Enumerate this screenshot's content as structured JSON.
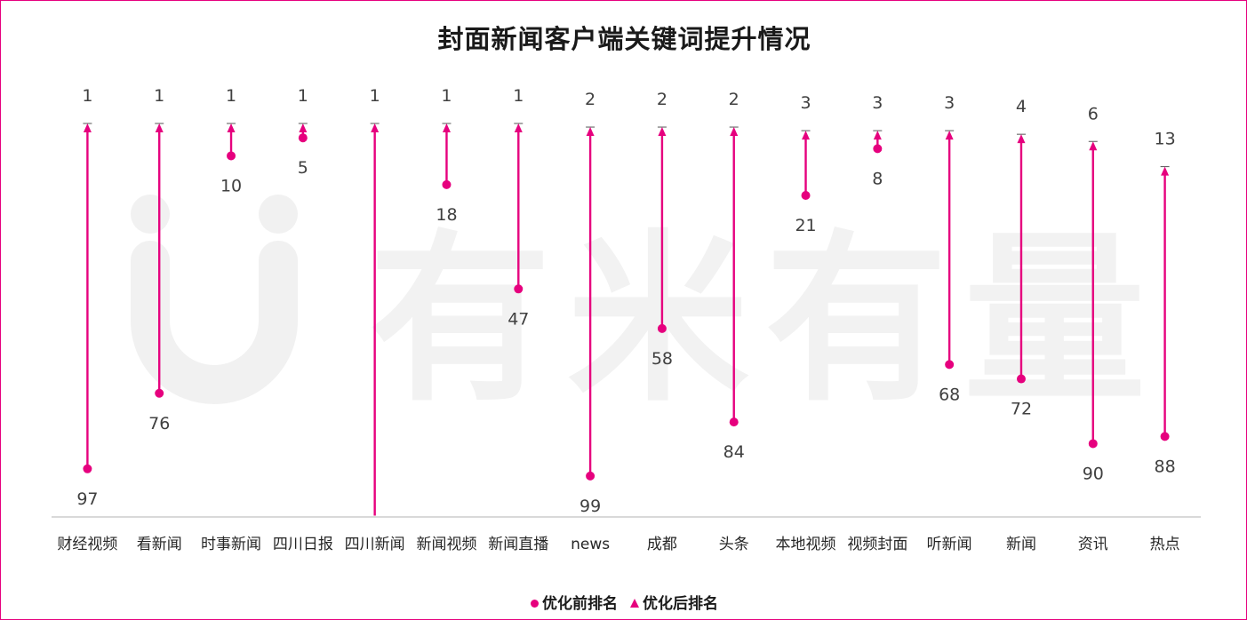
{
  "chart_data": {
    "type": "range-arrow",
    "title": "封面新闻客户端关键词提升情况",
    "categories": [
      "财经视频",
      "看新闻",
      "时事新闻",
      "四川日报",
      "四川新闻",
      "新闻视频",
      "新闻直播",
      "news",
      "成都",
      "头条",
      "本地视频",
      "视频封面",
      "听新闻",
      "新闻",
      "资讯",
      "热点"
    ],
    "series": [
      {
        "name": "优化前排名",
        "marker": "circle",
        "values": [
          97,
          76,
          10,
          5,
          110,
          18,
          47,
          99,
          58,
          84,
          21,
          8,
          68,
          72,
          90,
          88
        ],
        "labels": [
          "97",
          "76",
          "10",
          "5",
          "",
          "18",
          "47",
          "99",
          "58",
          "84",
          "21",
          "8",
          "68",
          "72",
          "90",
          "88"
        ]
      },
      {
        "name": "优化后排名",
        "marker": "triangle",
        "values": [
          1,
          1,
          1,
          1,
          1,
          1,
          1,
          2,
          2,
          2,
          3,
          3,
          3,
          4,
          6,
          13
        ]
      }
    ],
    "y_reversed": true,
    "ylim": [
      1,
      110
    ],
    "grid": false,
    "legend_position": "bottom",
    "colors": {
      "line": "#e6007e",
      "before_marker": "#e6007e",
      "after_marker": "#e6007e",
      "axis": "#d9d9d9",
      "watermark": "#f2f2f2"
    }
  },
  "legend": {
    "before_label": "优化前排名",
    "after_label": "优化后排名"
  },
  "watermark": {
    "text": "有米有量",
    "icon": "smile-logo-icon"
  }
}
